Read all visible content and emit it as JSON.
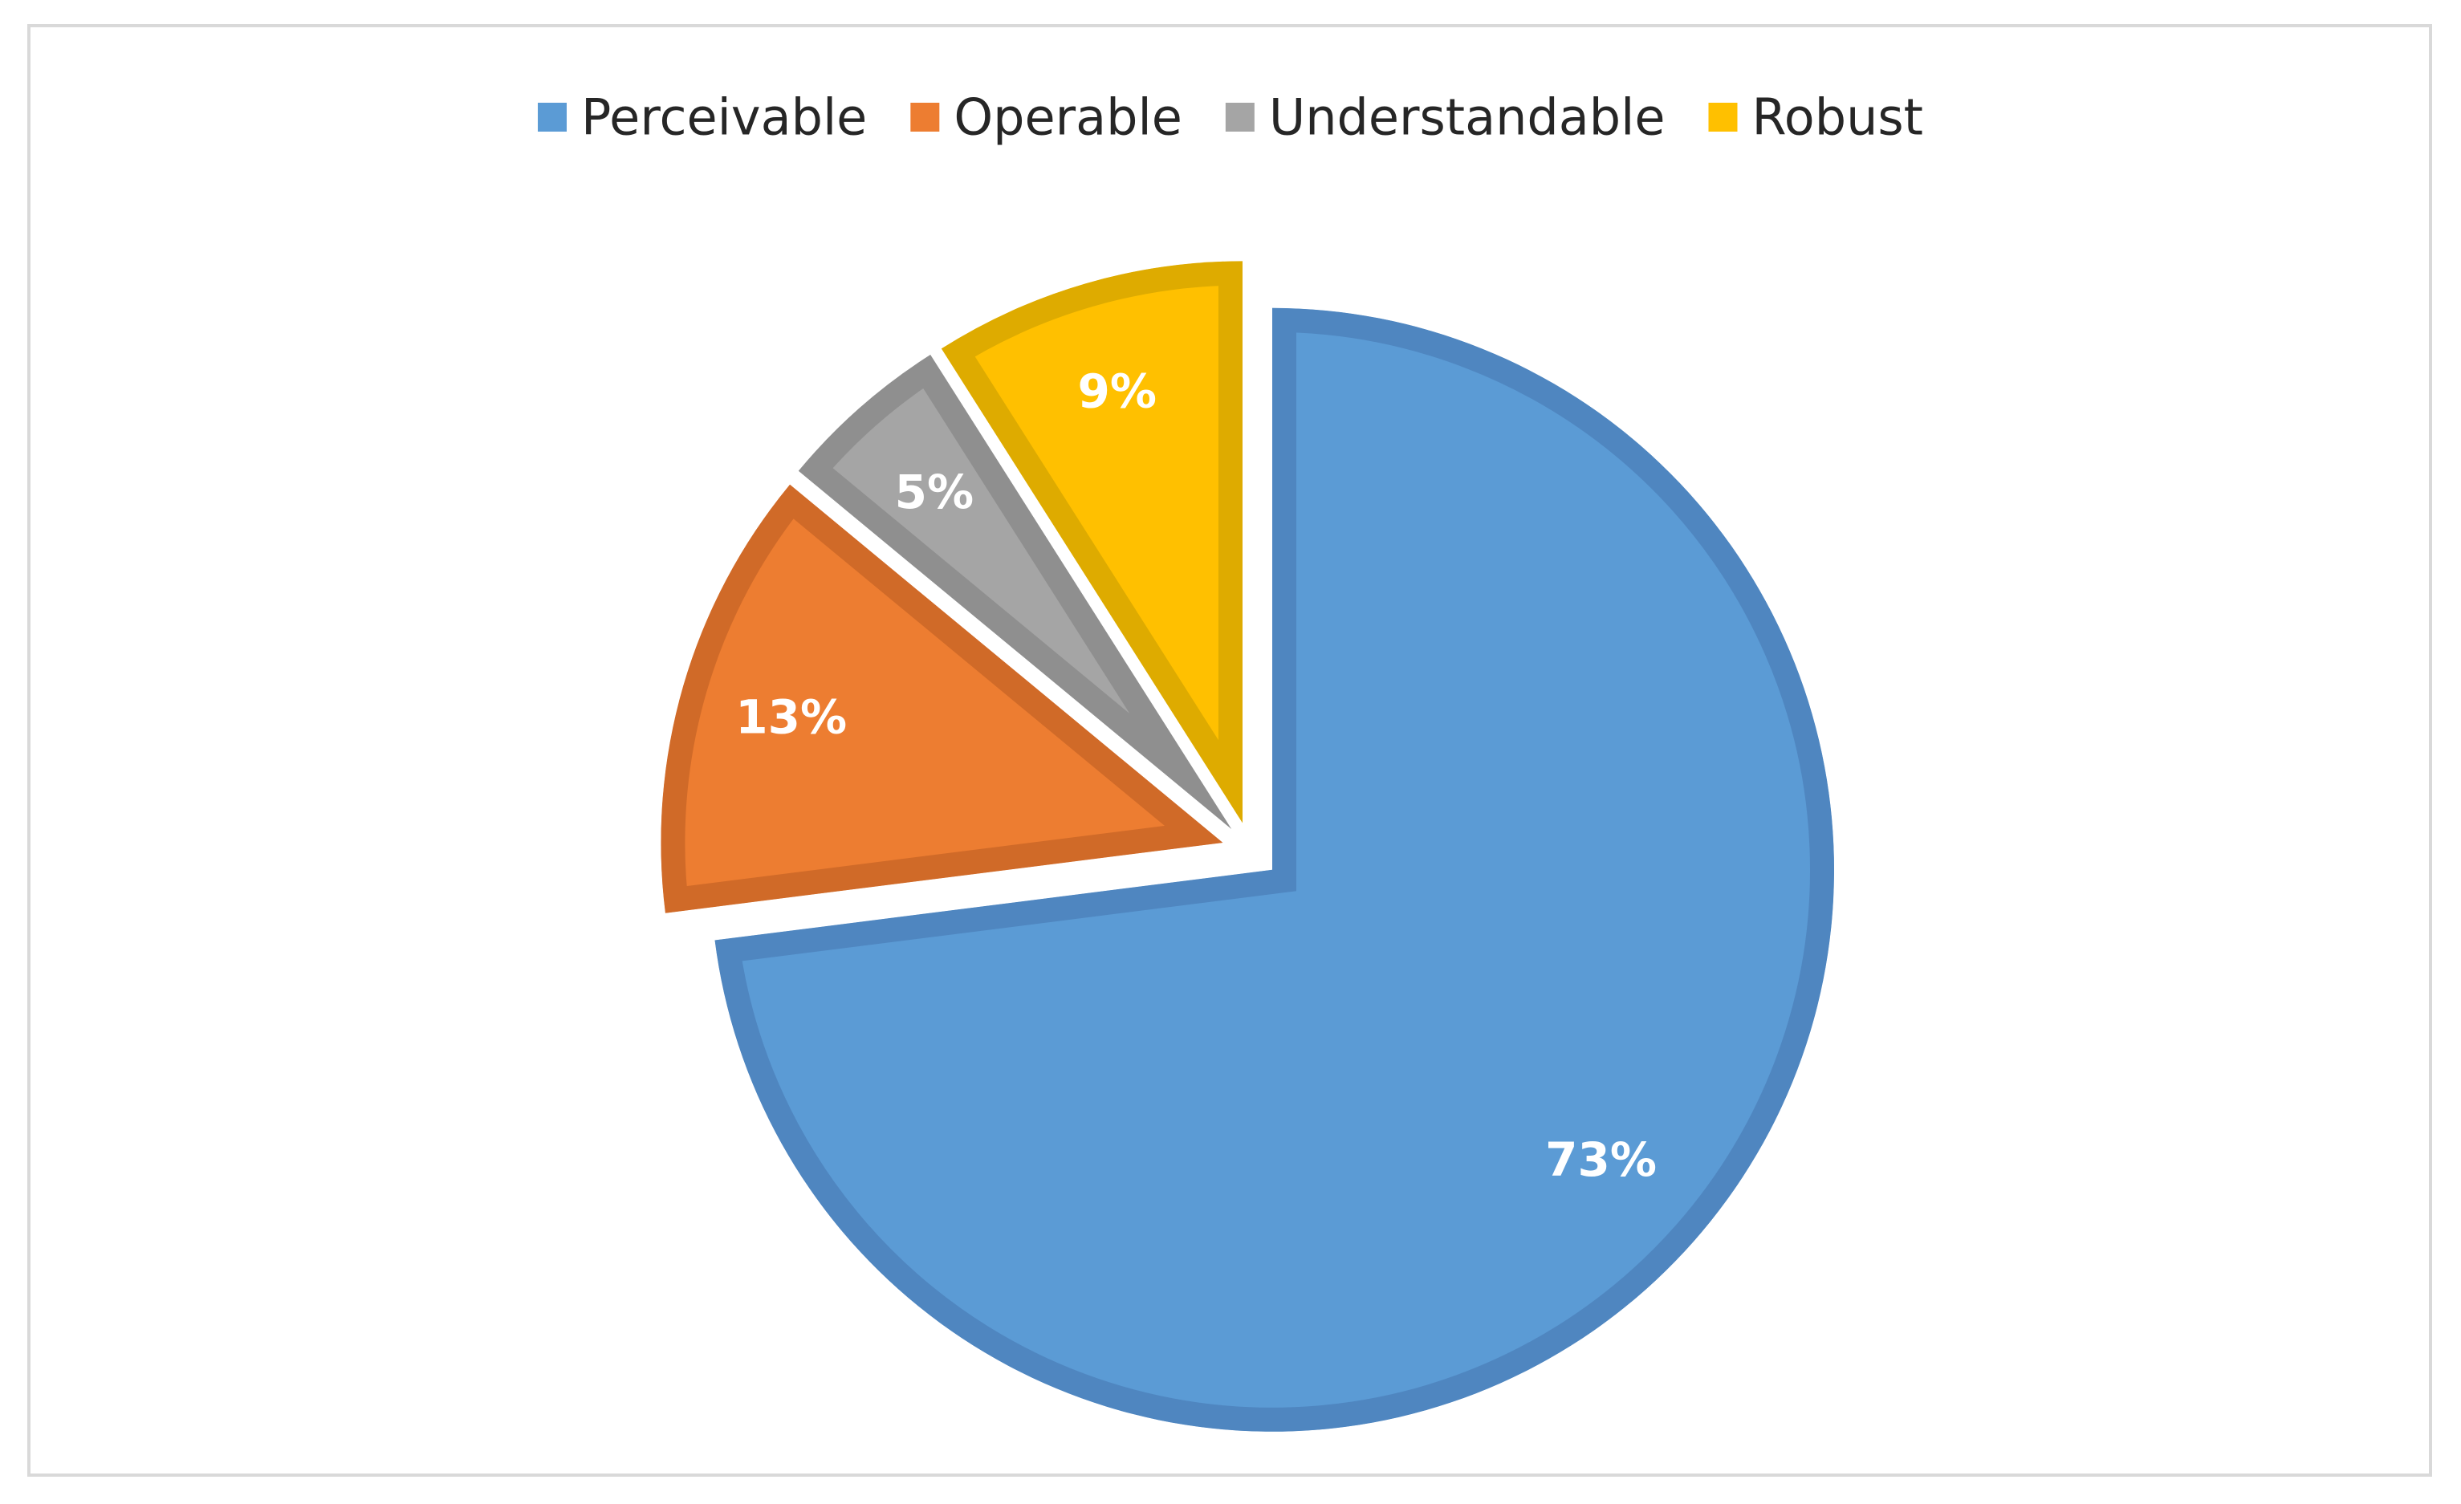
{
  "chart_data": {
    "type": "pie",
    "title": "",
    "legend_position": "top",
    "categories": [
      "Perceivable",
      "Operable",
      "Understandable",
      "Robust"
    ],
    "values": [
      73,
      13,
      5,
      9
    ],
    "labels": [
      "73%",
      "13%",
      "5%",
      "9%"
    ],
    "exploded": true,
    "colors": {
      "fill": [
        "#5b9bd5",
        "#ed7d31",
        "#a5a5a5",
        "#ffc000"
      ],
      "border": [
        "#4f86c0",
        "#d06a28",
        "#8f8f8f",
        "#deab00"
      ]
    }
  }
}
